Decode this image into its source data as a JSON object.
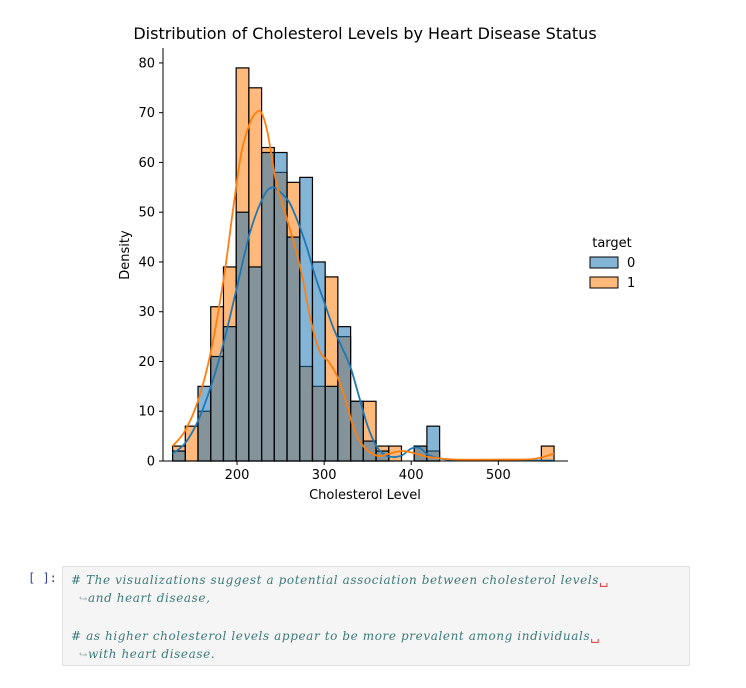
{
  "chart_data": {
    "type": "histogram",
    "title": "Distribution of Cholesterol Levels by Heart Disease Status",
    "xlabel": "Cholesterol Level",
    "ylabel": "Density",
    "xlim": [
      115,
      580
    ],
    "ylim": [
      0,
      83
    ],
    "xticks": [
      200,
      300,
      400,
      500
    ],
    "yticks": [
      0,
      10,
      20,
      30,
      40,
      50,
      60,
      70,
      80
    ],
    "grid": false,
    "legend": {
      "title": "target",
      "placement": "right"
    },
    "bin_start": 126,
    "bin_width": 14.6,
    "series": [
      {
        "name": "0",
        "color": "#1f77b4",
        "counts": [
          2,
          0,
          15,
          21,
          27,
          50,
          39,
          62,
          62,
          45,
          57,
          40,
          15,
          27,
          12,
          4,
          2,
          0,
          0,
          3,
          7,
          0,
          0,
          0,
          0,
          0,
          0,
          0,
          0,
          0
        ],
        "kde_x": [
          126,
          140,
          155,
          170,
          185,
          200,
          215,
          230,
          240,
          250,
          260,
          270,
          280,
          290,
          300,
          310,
          320,
          330,
          340,
          350,
          360,
          370,
          380,
          390,
          400,
          410,
          420,
          440,
          470,
          500,
          530,
          564
        ],
        "kde_y": [
          1.5,
          3.5,
          8,
          15,
          24,
          35,
          46,
          53,
          55,
          54,
          52,
          48,
          43,
          37,
          32,
          27,
          23,
          19,
          13,
          7,
          3,
          1.2,
          0.8,
          1.2,
          2.5,
          2.6,
          1.2,
          0.3,
          0.1,
          0.1,
          0.1,
          0.1
        ]
      },
      {
        "name": "1",
        "color": "#ff7f0e",
        "counts": [
          3,
          7,
          10,
          31,
          39,
          79,
          75,
          63,
          58,
          56,
          19,
          15,
          37,
          25,
          12,
          12,
          3,
          3,
          0,
          3,
          2,
          0,
          0,
          0,
          0,
          0,
          0,
          0,
          0,
          3
        ],
        "kde_x": [
          126,
          140,
          155,
          170,
          185,
          195,
          205,
          215,
          222,
          228,
          235,
          245,
          255,
          265,
          275,
          285,
          295,
          305,
          315,
          325,
          335,
          345,
          355,
          365,
          375,
          390,
          405,
          420,
          450,
          500,
          540,
          564
        ],
        "kde_y": [
          3,
          6,
          12,
          22,
          37,
          50,
          62,
          68,
          70,
          70,
          66,
          56,
          50,
          44,
          37,
          28,
          22,
          20,
          17,
          12,
          6,
          3,
          1.5,
          1,
          1.5,
          2,
          1.5,
          0.8,
          0.3,
          0.3,
          0.4,
          1.5
        ]
      }
    ]
  },
  "cell": {
    "prompt": "[ ]:",
    "line1": "# The visualizations suggest a potential association between cholesterol levels",
    "line1_cont": "and heart disease,",
    "line2": "# as higher cholesterol levels appear to be more prevalent among individuals",
    "line2_cont": "with heart disease."
  }
}
